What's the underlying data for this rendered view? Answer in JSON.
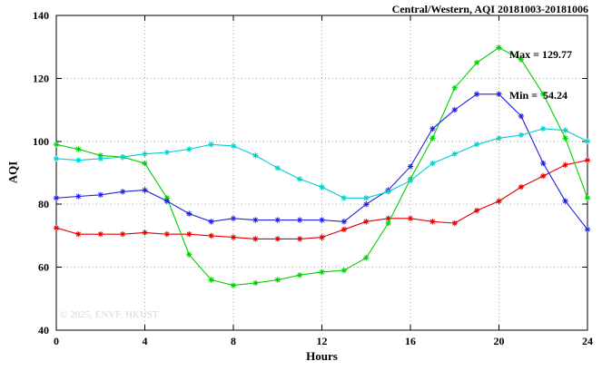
{
  "title": "Central/Western, AQI 20181003-20181006",
  "annotation": {
    "max": "Max = 129.77",
    "min": "Min =  54.24"
  },
  "watermark": "© 2025, ENVF, HKUST",
  "chart_data": {
    "type": "line",
    "title": "Central/Western, AQI 20181003-20181006",
    "xlabel": "Hours",
    "ylabel": "AQI",
    "xlim": [
      0,
      24
    ],
    "ylim": [
      40,
      140
    ],
    "xticks": [
      0,
      4,
      8,
      12,
      16,
      20,
      24
    ],
    "yticks": [
      40,
      60,
      80,
      100,
      120,
      140
    ],
    "grid": true,
    "grid_color": "#a8a8a8",
    "max_value": 129.77,
    "min_value": 54.24,
    "x": [
      0,
      1,
      2,
      3,
      4,
      5,
      6,
      7,
      8,
      9,
      10,
      11,
      12,
      13,
      14,
      15,
      16,
      17,
      18,
      19,
      20,
      21,
      22,
      23,
      24
    ],
    "series": [
      {
        "name": "red",
        "color": "#e00000",
        "values": [
          72.5,
          70.5,
          70.5,
          70.5,
          71,
          70.5,
          70.5,
          70,
          69.5,
          69,
          69,
          69,
          69.5,
          72,
          74.5,
          75.5,
          75.5,
          74.5,
          74,
          78,
          81,
          85.5,
          89,
          92.5,
          94
        ]
      },
      {
        "name": "green",
        "color": "#00d000",
        "values": [
          99,
          97.5,
          95.5,
          95,
          93,
          82,
          64,
          56,
          54.24,
          55,
          56,
          57.5,
          58.5,
          59,
          63,
          74,
          88,
          101,
          117,
          125,
          129.77,
          126,
          115,
          101,
          82
        ]
      },
      {
        "name": "blue",
        "color": "#2020e0",
        "values": [
          82,
          82.5,
          83,
          84,
          84.5,
          81,
          77,
          74.5,
          75.5,
          75,
          75,
          75,
          75,
          74.5,
          80,
          84.5,
          92,
          104,
          110,
          115,
          115,
          108,
          93,
          81,
          72
        ]
      },
      {
        "name": "cyan",
        "color": "#00d0d0",
        "values": [
          94.5,
          94,
          94.5,
          95,
          96,
          96.5,
          97.5,
          99,
          98.5,
          95.5,
          91.5,
          88,
          85.5,
          82,
          82,
          84,
          87.5,
          93,
          96,
          99,
          101,
          102,
          104,
          103.5,
          100
        ]
      }
    ]
  }
}
